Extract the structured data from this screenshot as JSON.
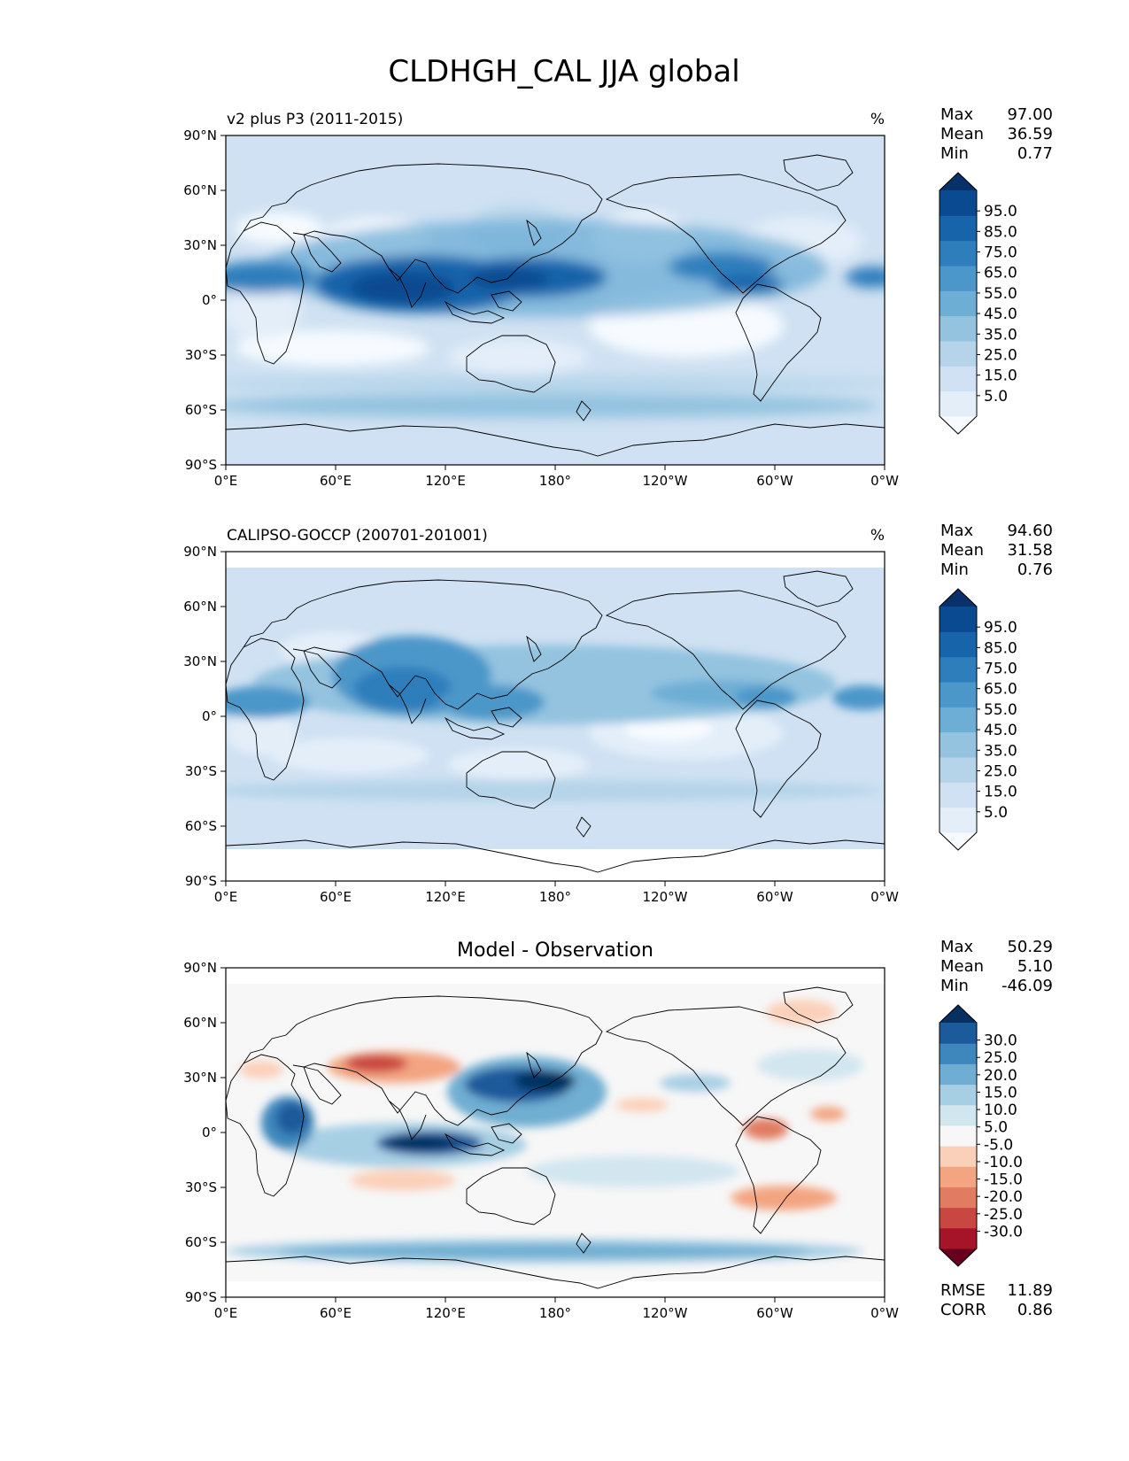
{
  "title": "CLDHGH_CAL JJA global",
  "x_ticks": [
    "0°E",
    "60°E",
    "120°E",
    "180°",
    "120°W",
    "60°W",
    "0°W"
  ],
  "y_ticks": [
    "90°N",
    "60°N",
    "30°N",
    "0°",
    "30°S",
    "60°S",
    "90°S"
  ],
  "panels": [
    {
      "label": "v2 plus P3 (2011-2015)",
      "units": "%",
      "stats": [
        {
          "name": "Max",
          "value": "97.00"
        },
        {
          "name": "Mean",
          "value": "36.59"
        },
        {
          "name": "Min",
          "value": "0.77"
        }
      ],
      "colorbar": {
        "labels": [
          "95.0",
          "85.0",
          "75.0",
          "65.0",
          "55.0",
          "45.0",
          "35.0",
          "25.0",
          "15.0",
          "5.0"
        ],
        "colors": [
          "#f7fbff",
          "#e3eef9",
          "#cfe1f2",
          "#b5d4e9",
          "#93c3df",
          "#6daed5",
          "#4b97c9",
          "#2f7ebc",
          "#1864aa",
          "#0a4a90",
          "#08306b"
        ]
      }
    },
    {
      "label": "CALIPSO-GOCCP (200701-201001)",
      "units": "%",
      "stats": [
        {
          "name": "Max",
          "value": "94.60"
        },
        {
          "name": "Mean",
          "value": "31.58"
        },
        {
          "name": "Min",
          "value": "0.76"
        }
      ],
      "colorbar": {
        "labels": [
          "95.0",
          "85.0",
          "75.0",
          "65.0",
          "55.0",
          "45.0",
          "35.0",
          "25.0",
          "15.0",
          "5.0"
        ],
        "colors": [
          "#f7fbff",
          "#e3eef9",
          "#cfe1f2",
          "#b5d4e9",
          "#93c3df",
          "#6daed5",
          "#4b97c9",
          "#2f7ebc",
          "#1864aa",
          "#0a4a90",
          "#08306b"
        ]
      }
    },
    {
      "label": "Model - Observation",
      "units": "",
      "stats": [
        {
          "name": "Max",
          "value": "50.29"
        },
        {
          "name": "Mean",
          "value": "5.10"
        },
        {
          "name": "Min",
          "value": "-46.09"
        }
      ],
      "metrics": [
        {
          "name": "RMSE",
          "value": "11.89"
        },
        {
          "name": "CORR",
          "value": "0.86"
        }
      ],
      "colorbar": {
        "labels": [
          "30.0",
          "25.0",
          "20.0",
          "15.0",
          "10.0",
          "5.0",
          "-5.0",
          "-10.0",
          "-15.0",
          "-20.0",
          "-25.0",
          "-30.0"
        ],
        "colors": [
          "#67001f",
          "#a51429",
          "#c94741",
          "#e17b62",
          "#f3a481",
          "#fbd0b9",
          "#f7f7f7",
          "#d2e6f0",
          "#a7cfe4",
          "#6faed2",
          "#3d87bc",
          "#1b5a9b",
          "#053061"
        ]
      }
    }
  ]
}
